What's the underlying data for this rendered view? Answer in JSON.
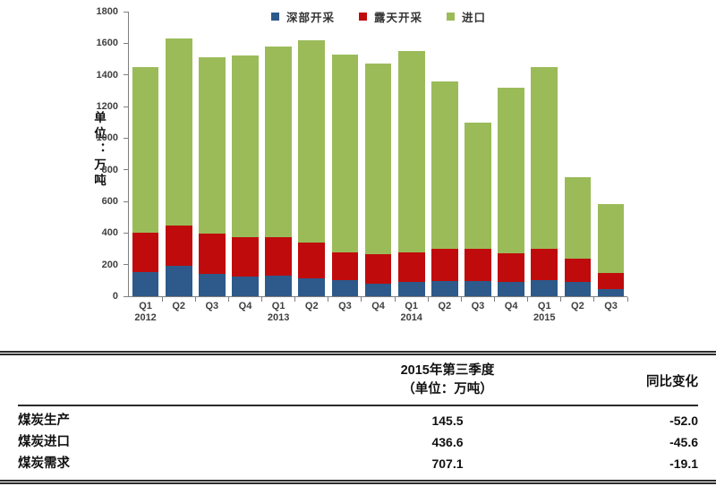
{
  "chart": {
    "unit_label": "单位：万吨"
  },
  "chart_data": {
    "type": "bar",
    "stacked": true,
    "title": "",
    "xlabel": "",
    "ylabel": "单位：万吨",
    "ylim": [
      0,
      1800
    ],
    "ytick_step": 200,
    "grid": false,
    "legend_position": "top",
    "categories": [
      "Q1 2012",
      "Q2 2012",
      "Q3 2012",
      "Q4 2012",
      "Q1 2013",
      "Q2 2013",
      "Q3 2013",
      "Q4 2013",
      "Q1 2014",
      "Q2 2014",
      "Q3 2014",
      "Q4 2014",
      "Q1 2015",
      "Q2 2015",
      "Q3 2015"
    ],
    "x_ticks": [
      {
        "q": "Q1",
        "year": "2012"
      },
      {
        "q": "Q2"
      },
      {
        "q": "Q3"
      },
      {
        "q": "Q4"
      },
      {
        "q": "Q1",
        "year": "2013"
      },
      {
        "q": "Q2"
      },
      {
        "q": "Q3"
      },
      {
        "q": "Q4"
      },
      {
        "q": "Q1",
        "year": "2014"
      },
      {
        "q": "Q2"
      },
      {
        "q": "Q3"
      },
      {
        "q": "Q4"
      },
      {
        "q": "Q1",
        "year": "2015"
      },
      {
        "q": "Q2"
      },
      {
        "q": "Q3"
      }
    ],
    "series": [
      {
        "name": "深部开采",
        "color": "#2D5A8A",
        "values": [
          155,
          195,
          140,
          125,
          130,
          115,
          100,
          80,
          90,
          95,
          95,
          90,
          100,
          90,
          45
        ]
      },
      {
        "name": "露天开采",
        "color": "#C00B0C",
        "values": [
          245,
          255,
          255,
          250,
          245,
          225,
          175,
          185,
          185,
          205,
          205,
          180,
          200,
          150,
          100.5
        ]
      },
      {
        "name": "进口",
        "color": "#9BBB59",
        "values": [
          1050,
          1180,
          1115,
          1145,
          1205,
          1280,
          1255,
          1205,
          1275,
          1060,
          800,
          1050,
          1150,
          515,
          436.6
        ]
      }
    ]
  },
  "table": {
    "header": {
      "period_line1": "2015年第三季度",
      "period_line2": "（单位：万吨）",
      "change": "同比变化"
    },
    "rows": [
      {
        "label": "煤炭生产",
        "value": "145.5",
        "change": "-52.0"
      },
      {
        "label": "煤炭进口",
        "value": "436.6",
        "change": "-45.6"
      },
      {
        "label": "煤炭需求",
        "value": "707.1",
        "change": "-19.1"
      }
    ]
  }
}
